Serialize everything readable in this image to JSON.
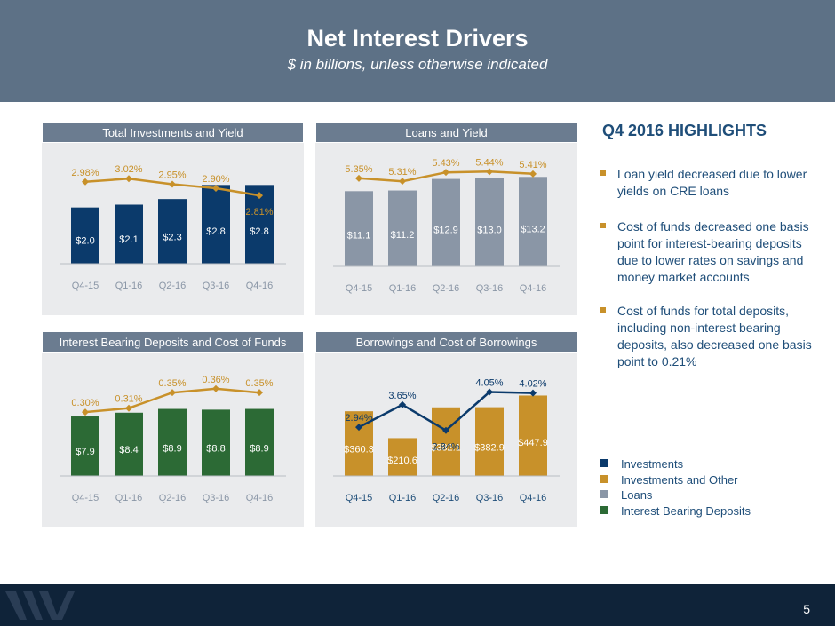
{
  "header": {
    "title": "Net Interest Drivers",
    "subtitle": "$ in billions, unless otherwise indicated"
  },
  "colors": {
    "investments": "#0b3a6b",
    "investments_other": "#c8912a",
    "loans": "#8a96a6",
    "deposits": "#2c6a35",
    "line_gold": "#c8912a",
    "line_navy": "#0b3a6b"
  },
  "chart_data": [
    {
      "id": "investments",
      "type": "bar",
      "title": "Total Investments and Yield",
      "categories": [
        "Q4-15",
        "Q1-16",
        "Q2-16",
        "Q3-16",
        "Q4-16"
      ],
      "series": [
        {
          "name": "Investments",
          "kind": "bar",
          "values": [
            2.0,
            2.1,
            2.3,
            2.8,
            2.8
          ],
          "labels": [
            "$2.0",
            "$2.1",
            "$2.3",
            "$2.8",
            "$2.8"
          ],
          "color": "#0b3a6b"
        },
        {
          "name": "Yield",
          "kind": "line",
          "values": [
            2.98,
            3.02,
            2.95,
            2.9,
            2.81
          ],
          "labels": [
            "2.98%",
            "3.02%",
            "2.95%",
            "2.90%",
            "2.81%"
          ],
          "color": "#c8912a"
        }
      ]
    },
    {
      "id": "loans",
      "type": "bar",
      "title": "Loans and Yield",
      "categories": [
        "Q4-15",
        "Q1-16",
        "Q2-16",
        "Q3-16",
        "Q4-16"
      ],
      "series": [
        {
          "name": "Loans",
          "kind": "bar",
          "values": [
            11.1,
            11.2,
            12.9,
            13.0,
            13.2
          ],
          "labels": [
            "$11.1",
            "$11.2",
            "$12.9",
            "$13.0",
            "$13.2"
          ],
          "color": "#8a96a6"
        },
        {
          "name": "Yield",
          "kind": "line",
          "values": [
            5.35,
            5.31,
            5.43,
            5.44,
            5.41
          ],
          "labels": [
            "5.35%",
            "5.31%",
            "5.43%",
            "5.44%",
            "5.41%"
          ],
          "color": "#c8912a"
        }
      ]
    },
    {
      "id": "deposits",
      "type": "bar",
      "title": "Interest Bearing Deposits and Cost of Funds",
      "categories": [
        "Q4-15",
        "Q1-16",
        "Q2-16",
        "Q3-16",
        "Q4-16"
      ],
      "series": [
        {
          "name": "Interest Bearing Deposits",
          "kind": "bar",
          "values": [
            7.9,
            8.4,
            8.9,
            8.8,
            8.9
          ],
          "labels": [
            "$7.9",
            "$8.4",
            "$8.9",
            "$8.8",
            "$8.9"
          ],
          "color": "#2c6a35"
        },
        {
          "name": "Cost of Funds",
          "kind": "line",
          "values": [
            0.3,
            0.31,
            0.35,
            0.36,
            0.35
          ],
          "labels": [
            "0.30%",
            "0.31%",
            "0.35%",
            "0.36%",
            "0.35%"
          ],
          "color": "#c8912a"
        }
      ]
    },
    {
      "id": "borrowings",
      "type": "bar",
      "title": "Borrowings and Cost of Borrowings",
      "categories": [
        "Q4-15",
        "Q1-16",
        "Q2-16",
        "Q3-16",
        "Q4-16"
      ],
      "series": [
        {
          "name": "Borrowings",
          "kind": "bar",
          "values": [
            360.3,
            210.6,
            382.1,
            382.9,
            447.9
          ],
          "labels": [
            "$360.3",
            "$210.6",
            "$382.1",
            "$382.9",
            "$447.9"
          ],
          "color": "#c8912a"
        },
        {
          "name": "Cost of Borrowings",
          "kind": "line",
          "values": [
            2.94,
            3.65,
            2.84,
            4.05,
            4.02
          ],
          "labels": [
            "2.94%",
            "3.65%",
            "2.84%",
            "4.05%",
            "4.02%"
          ],
          "color": "#0b3a6b"
        }
      ]
    }
  ],
  "highlights": {
    "title": "Q4 2016 HIGHLIGHTS",
    "bullets": [
      "Loan yield decreased due to lower yields on CRE loans",
      "Cost of funds decreased one basis point for interest-bearing deposits due to lower rates on savings and money market accounts",
      "Cost of funds for total deposits, including non-interest bearing deposits, also decreased one basis point to 0.21%"
    ]
  },
  "legend": [
    {
      "label": "Investments",
      "color": "#0b3a6b"
    },
    {
      "label": "Investments and Other",
      "color": "#c8912a"
    },
    {
      "label": "Loans",
      "color": "#8a96a6"
    },
    {
      "label": "Interest Bearing Deposits",
      "color": "#2c6a35"
    }
  ],
  "footer": {
    "page_number": "5"
  }
}
